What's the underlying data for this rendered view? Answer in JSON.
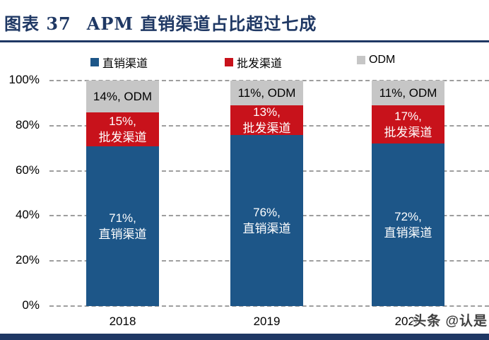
{
  "header": {
    "figure_label": "图表 37",
    "title": "APM 直销渠道占比超过七成"
  },
  "watermark": {
    "text": "头条 @认是"
  },
  "chart_data": {
    "type": "bar",
    "stacked": true,
    "title": "APM 直销渠道占比超过七成",
    "categories": [
      "2018",
      "2019",
      "2020"
    ],
    "series": [
      {
        "name": "直销渠道",
        "color": "#1D5688",
        "label_color": "#FFFFFF",
        "values": [
          71,
          76,
          72
        ],
        "labels": [
          [
            "71%,",
            "直销渠道"
          ],
          [
            "76%,",
            "直销渠道"
          ],
          [
            "72%,",
            "直销渠道"
          ]
        ]
      },
      {
        "name": "批发渠道",
        "color": "#C8121B",
        "label_color": "#FFFFFF",
        "values": [
          15,
          13,
          17
        ],
        "labels": [
          [
            "15%,",
            "批发渠道"
          ],
          [
            "13%,",
            "批发渠道"
          ],
          [
            "17%,",
            "批发渠道"
          ]
        ]
      },
      {
        "name": "ODM",
        "color": "#C6C6C6",
        "label_color": "#000000",
        "values": [
          14,
          11,
          11
        ],
        "labels": [
          [
            "14%, ODM"
          ],
          [
            "11%, ODM"
          ],
          [
            "11%, ODM"
          ]
        ]
      }
    ],
    "yticks": [
      "0%",
      "20%",
      "40%",
      "60%",
      "80%",
      "100%"
    ],
    "ylim": [
      0,
      100
    ],
    "grid": "horizontal-dashed",
    "legend_position": "top",
    "accent_color": "#1F3864",
    "gridline_color": "#9e9e9e"
  }
}
